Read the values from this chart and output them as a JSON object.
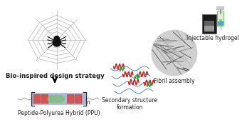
{
  "background_color": "#ffffff",
  "label_bio": "Bio-inspired design strategy",
  "label_ppu": "Peptide-Polyurea Hybrid (PPU)",
  "label_secondary": "Secondary structure\nformation",
  "label_fibril": "Fibril assembly",
  "label_injectable": "Injectable hydrogel",
  "arrow_color_light": "#f8d5b8",
  "arrow_color_main": "#f0a060",
  "web_color": "#b8b8b8",
  "spider_color": "#111111",
  "block_blue": "#aabbd0",
  "block_red": "#d45555",
  "block_green": "#88bb88",
  "helix_red": "#cc2222",
  "helix_green": "#22aa22",
  "chain_blue": "#5588cc",
  "text_color": "#222222",
  "label_fontsize": 5.5,
  "label_bold_fontsize": 6.2
}
